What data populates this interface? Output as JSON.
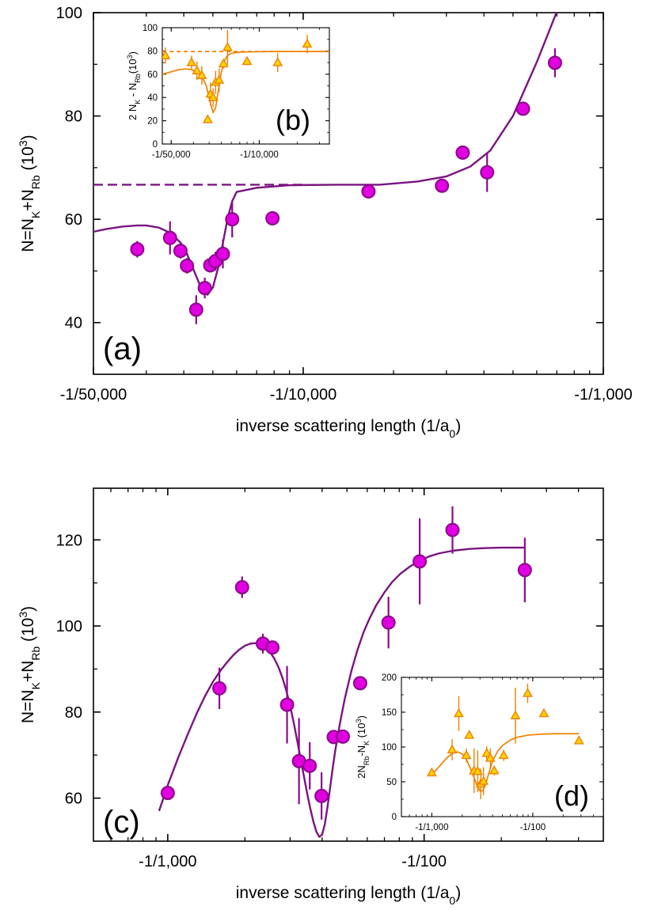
{
  "chart_data": [
    {
      "panel": "a",
      "type": "scatter",
      "panel_label": "(a)",
      "xlabel_prefix": "inverse scattering length (1/a",
      "xlabel_sub": "0",
      "xlabel_suffix": ")",
      "ylabel": {
        "a": "N=N",
        "b": "K",
        "c": "+N",
        "d": "Rb",
        "e": " (10",
        "f": "3",
        "g": ")"
      },
      "x_ticks": [
        {
          "value": -2e-05,
          "label": "-1/50,000"
        },
        {
          "value": -0.0001,
          "label": "-1/10,000"
        },
        {
          "value": -0.001,
          "label": "-1/1,000"
        }
      ],
      "xlim": [
        -2e-05,
        -0.001
      ],
      "ylim": [
        30,
        100
      ],
      "y_ticks": [
        40,
        60,
        80,
        100
      ],
      "series": [
        {
          "kind": "points",
          "color": "#e000e0",
          "edge": "#8a0a8a",
          "points": [
            {
              "x": -2.8e-05,
              "y": 54.2,
              "err": 1.6
            },
            {
              "x": -3.6e-05,
              "y": 56.4,
              "err": 3.2
            },
            {
              "x": -3.9e-05,
              "y": 53.9,
              "err": 1.5
            },
            {
              "x": -4.1e-05,
              "y": 51.0,
              "err": 1.5
            },
            {
              "x": -4.4e-05,
              "y": 42.5,
              "err": 2.8
            },
            {
              "x": -4.7e-05,
              "y": 46.7,
              "err": 2.0
            },
            {
              "x": -4.9e-05,
              "y": 51.1,
              "err": 1.4
            },
            {
              "x": -5.1e-05,
              "y": 51.9,
              "err": 1.8
            },
            {
              "x": -5.4e-05,
              "y": 53.3,
              "err": 2.8
            },
            {
              "x": -5.8e-05,
              "y": 60.0,
              "err": 3.5
            },
            {
              "x": -7.9e-05,
              "y": 60.2,
              "err": 1.0
            },
            {
              "x": -0.000165,
              "y": 65.4,
              "err": 1.2
            },
            {
              "x": -0.00029,
              "y": 66.5,
              "err": 1.0
            },
            {
              "x": -0.00034,
              "y": 72.9,
              "err": 1.0
            },
            {
              "x": -0.00041,
              "y": 69.1,
              "err": 3.8
            },
            {
              "x": -0.00054,
              "y": 81.4,
              "err": 1.0
            },
            {
              "x": -0.00069,
              "y": 90.3,
              "err": 2.8
            }
          ]
        },
        {
          "kind": "fit",
          "color": "#7a1480",
          "x": [
            -1.8e-05,
            -2e-05,
            -2.2e-05,
            -2.5e-05,
            -2.8e-05,
            -3e-05,
            -3.3e-05,
            -3.6e-05,
            -3.9e-05,
            -4.1e-05,
            -4.4e-05,
            -4.6e-05,
            -4.8e-05,
            -5e-05,
            -5.2e-05,
            -5.4e-05,
            -5.6e-05,
            -5.8e-05,
            -6e-05,
            -7e-05,
            -9e-05,
            -0.00013,
            -0.00018,
            -0.00024,
            -0.0003,
            -0.00036,
            -0.00042,
            -0.0005,
            -0.0006,
            -0.00072
          ],
          "y": [
            57.0,
            57.6,
            58.1,
            58.6,
            58.8,
            58.8,
            58.4,
            57.4,
            55.5,
            53.3,
            49.0,
            46.3,
            45.4,
            46.8,
            50.5,
            55.4,
            60.2,
            63.5,
            65.3,
            66.1,
            66.6,
            66.7,
            66.7,
            67.3,
            68.3,
            70.2,
            73.3,
            80.0,
            90.4,
            102
          ]
        },
        {
          "kind": "asymptote",
          "color": "#7a1480",
          "y": 66.7,
          "x_start": -2e-05,
          "x_end": -0.0001
        }
      ]
    },
    {
      "panel": "b",
      "type": "scatter",
      "inset": true,
      "panel_label": "(b)",
      "ylabel": {
        "a": "2 N",
        "b": "K",
        "c": " - N",
        "d": "Rb",
        "e": "(10",
        "f": "3",
        "g": ")"
      },
      "x_ticks": [
        {
          "value": -2e-05,
          "label": "-1/50,000"
        },
        {
          "value": -0.0001,
          "label": "-1/10,000"
        }
      ],
      "xlim": [
        -1.7e-05,
        -0.00036
      ],
      "ylim": [
        0,
        100
      ],
      "y_ticks": [
        0,
        20,
        40,
        60,
        80,
        100
      ],
      "series": [
        {
          "kind": "points",
          "color": "#ffd400",
          "edge": "#f08000",
          "points": [
            {
              "x": -1.8e-05,
              "y": 76,
              "err": 7
            },
            {
              "x": -2.9e-05,
              "y": 70,
              "err": 6
            },
            {
              "x": -3.2e-05,
              "y": 63,
              "err": 8
            },
            {
              "x": -3.5e-05,
              "y": 59,
              "err": 8
            },
            {
              "x": -3.9e-05,
              "y": 21,
              "err": 3
            },
            {
              "x": -4.1e-05,
              "y": 43,
              "err": 10
            },
            {
              "x": -4.3e-05,
              "y": 40,
              "err": 8
            },
            {
              "x": -4.5e-05,
              "y": 53,
              "err": 10
            },
            {
              "x": -4.8e-05,
              "y": 55,
              "err": 10
            },
            {
              "x": -5.2e-05,
              "y": 69,
              "err": 4
            },
            {
              "x": -5.6e-05,
              "y": 83,
              "err": 15
            },
            {
              "x": -8e-05,
              "y": 71,
              "err": 3
            },
            {
              "x": -0.00014,
              "y": 70,
              "err": 8
            },
            {
              "x": -0.00024,
              "y": 86,
              "err": 8
            }
          ]
        },
        {
          "kind": "fit",
          "color": "#f08000",
          "x": [
            -1.7e-05,
            -2e-05,
            -2.3e-05,
            -2.6e-05,
            -2.9e-05,
            -3.2e-05,
            -3.5e-05,
            -3.8e-05,
            -4.1e-05,
            -4.3e-05,
            -4.5e-05,
            -4.7e-05,
            -5e-05,
            -5.3e-05,
            -5.6e-05,
            -6e-05,
            -7e-05,
            -9e-05,
            -0.00013,
            -0.0002,
            -0.00036
          ],
          "y": [
            60,
            62,
            64,
            64.5,
            64,
            62,
            58,
            50,
            35,
            27,
            31,
            44,
            62,
            72,
            76,
            78,
            79,
            79.3,
            79.5,
            79.5,
            79.5
          ]
        },
        {
          "kind": "asymptote",
          "color": "#f08000",
          "y": 79.5,
          "x_start": -1.7e-05,
          "x_end": -0.00036
        }
      ]
    },
    {
      "panel": "c",
      "type": "scatter",
      "panel_label": "(c)",
      "xlabel_prefix": "inverse scattering length (1/a",
      "xlabel_sub": "0",
      "xlabel_suffix": ")",
      "ylabel": {
        "a": "N=N",
        "b": "K",
        "c": "+N",
        "d": "Rb",
        "e": " (10",
        "f": "3",
        "g": ")"
      },
      "x_ticks": [
        {
          "value": -0.001,
          "label": "-1/1,000"
        },
        {
          "value": -0.01,
          "label": "-1/100"
        }
      ],
      "xlim": [
        -0.000513,
        -0.05
      ],
      "ylim": [
        50,
        132
      ],
      "y_ticks": [
        60,
        80,
        100,
        120
      ],
      "series": [
        {
          "kind": "points",
          "color": "#e000e0",
          "edge": "#8a0a8a",
          "points": [
            {
              "x": -0.001,
              "y": 61.2,
              "err": 0.5
            },
            {
              "x": -0.00159,
              "y": 85.5,
              "err": 4.8
            },
            {
              "x": -0.00195,
              "y": 109.0,
              "err": 2.5
            },
            {
              "x": -0.00235,
              "y": 95.9,
              "err": 2.3
            },
            {
              "x": -0.00256,
              "y": 95.0,
              "err": 1.5
            },
            {
              "x": -0.00292,
              "y": 81.7,
              "err": 9.0
            },
            {
              "x": -0.00325,
              "y": 68.6,
              "err": 10.0
            },
            {
              "x": -0.00358,
              "y": 67.5,
              "err": 5.5
            },
            {
              "x": -0.00398,
              "y": 60.5,
              "err": 5.5
            },
            {
              "x": -0.00444,
              "y": 74.2,
              "err": 1.5
            },
            {
              "x": -0.00482,
              "y": 74.3,
              "err": 1.5
            },
            {
              "x": -0.00563,
              "y": 86.7,
              "err": 1.2
            },
            {
              "x": -0.00726,
              "y": 100.8,
              "err": 6.0
            },
            {
              "x": -0.00961,
              "y": 115.0,
              "err": 10.0
            },
            {
              "x": -0.0129,
              "y": 122.3,
              "err": 5.5
            },
            {
              "x": -0.0247,
              "y": 113.0,
              "err": 7.5
            }
          ]
        },
        {
          "kind": "fit",
          "color": "#7a1480",
          "x": [
            -0.000925,
            -0.001,
            -0.0011,
            -0.0012,
            -0.0013,
            -0.0014,
            -0.0015,
            -0.0016,
            -0.0017,
            -0.0018,
            -0.0019,
            -0.002,
            -0.0021,
            -0.0022,
            -0.0023,
            -0.0024,
            -0.0025,
            -0.0026,
            -0.0027,
            -0.0028,
            -0.0029,
            -0.003,
            -0.0031,
            -0.0032,
            -0.0033,
            -0.0034,
            -0.0035,
            -0.0036,
            -0.0037,
            -0.0038,
            -0.0039,
            -0.004,
            -0.0041,
            -0.0042,
            -0.0043,
            -0.0044,
            -0.0045,
            -0.0047,
            -0.0049,
            -0.0052,
            -0.0055,
            -0.0058,
            -0.0061,
            -0.0065,
            -0.007,
            -0.0075,
            -0.0081,
            -0.0088,
            -0.0095,
            -0.0105,
            -0.0115,
            -0.013,
            -0.015,
            -0.0175,
            -0.02,
            -0.0247
          ],
          "y": [
            57,
            63,
            69.5,
            75,
            79.8,
            83.8,
            87,
            89.5,
            91.5,
            93.2,
            94.5,
            95.4,
            95.9,
            96.0,
            95.7,
            95.1,
            94.0,
            92.5,
            90.5,
            88.0,
            85.0,
            81.5,
            77.5,
            73.3,
            69.0,
            65.0,
            61.0,
            57.5,
            54.5,
            52.2,
            51.0,
            51.5,
            54,
            58,
            62.5,
            67,
            71,
            77.5,
            83,
            89.5,
            94.5,
            98.5,
            101.5,
            104.8,
            107.8,
            110.2,
            112.2,
            113.8,
            115.0,
            116.2,
            116.9,
            117.5,
            117.9,
            118.1,
            118.2,
            118.2
          ]
        }
      ]
    },
    {
      "panel": "d",
      "type": "scatter",
      "inset": true,
      "panel_label": "(d)",
      "ylabel": {
        "a": "2N",
        "b": "Rb",
        "c": "-N",
        "d": "K",
        "e": " (10",
        "f": "3",
        "g": ")"
      },
      "x_ticks": [
        {
          "value": -0.001,
          "label": "-1/1,000"
        },
        {
          "value": -0.01,
          "label": "-1/100"
        }
      ],
      "xlim": [
        -0.0005,
        -0.05
      ],
      "ylim": [
        0,
        200
      ],
      "y_ticks": [
        0,
        50,
        100,
        150,
        200
      ],
      "series": [
        {
          "kind": "points",
          "color": "#ffd400",
          "edge": "#f08000",
          "points": [
            {
              "x": -0.001,
              "y": 63,
              "err": 4
            },
            {
              "x": -0.00159,
              "y": 96,
              "err": 15
            },
            {
              "x": -0.00185,
              "y": 148,
              "err": 25
            },
            {
              "x": -0.0022,
              "y": 88,
              "err": 10
            },
            {
              "x": -0.00235,
              "y": 117,
              "err": 5
            },
            {
              "x": -0.00262,
              "y": 66,
              "err": 32
            },
            {
              "x": -0.00285,
              "y": 65,
              "err": 30
            },
            {
              "x": -0.00305,
              "y": 47,
              "err": 22
            },
            {
              "x": -0.00325,
              "y": 51,
              "err": 20
            },
            {
              "x": -0.0035,
              "y": 91,
              "err": 10
            },
            {
              "x": -0.0038,
              "y": 84,
              "err": 14
            },
            {
              "x": -0.00415,
              "y": 66,
              "err": 7
            },
            {
              "x": -0.00515,
              "y": 88,
              "err": 8
            },
            {
              "x": -0.00673,
              "y": 145,
              "err": 40
            },
            {
              "x": -0.0089,
              "y": 177,
              "err": 14
            },
            {
              "x": -0.0129,
              "y": 148,
              "err": 5
            },
            {
              "x": -0.0287,
              "y": 109,
              "err": 5
            }
          ]
        },
        {
          "kind": "fit",
          "color": "#f08000",
          "x": [
            -0.001,
            -0.0012,
            -0.0014,
            -0.0016,
            -0.0018,
            -0.002,
            -0.0022,
            -0.0024,
            -0.0026,
            -0.0028,
            -0.003,
            -0.0032,
            -0.0034,
            -0.0037,
            -0.004,
            -0.0045,
            -0.005,
            -0.006,
            -0.007,
            -0.009,
            -0.012,
            -0.017,
            -0.0287
          ],
          "y": [
            60,
            73,
            84,
            91,
            93,
            90,
            82,
            70,
            57,
            45,
            37,
            37,
            46,
            64,
            80,
            94,
            102,
            110,
            114,
            117,
            118.5,
            119,
            119
          ]
        }
      ]
    }
  ]
}
